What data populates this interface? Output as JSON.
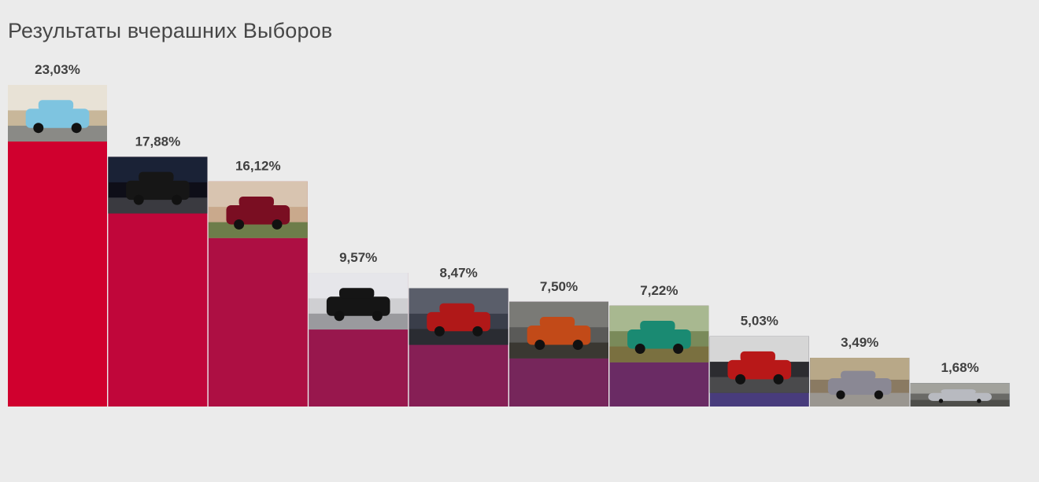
{
  "chart_data": {
    "type": "bar",
    "title": "Результаты вчерашних Выборов",
    "categories": [
      "",
      "",
      "",
      "",
      "",
      "",
      "",
      "",
      "",
      ""
    ],
    "values": [
      23.03,
      17.88,
      16.12,
      9.57,
      8.47,
      7.5,
      7.22,
      5.03,
      3.49,
      1.68
    ],
    "value_labels": [
      "23,03%",
      "17,88%",
      "16,12%",
      "9,57%",
      "8,47%",
      "7,50%",
      "7,22%",
      "5,03%",
      "3,49%",
      "1,68%"
    ],
    "bar_colors": [
      "#d0002e",
      "#c0063a",
      "#ad0f43",
      "#98174d",
      "#861f55",
      "#76265b",
      "#6a2b64",
      "#483c7c",
      "#2d4a98",
      "#2055a8"
    ],
    "bar_images": [
      "classic-blue-sedan-photo",
      "black-suv-night-photo",
      "red-coupe-with-woman-photo",
      "black-sedan-photo",
      "red-car-parking-lot-photo",
      "cars-in-garage-photo",
      "green-sedan-photo",
      "red-car-in-garage-photo",
      "grey-compact-van-photo",
      "silver-hatchback-photo"
    ],
    "ylim": [
      0,
      23.03
    ],
    "grid": false,
    "legend": "none"
  }
}
